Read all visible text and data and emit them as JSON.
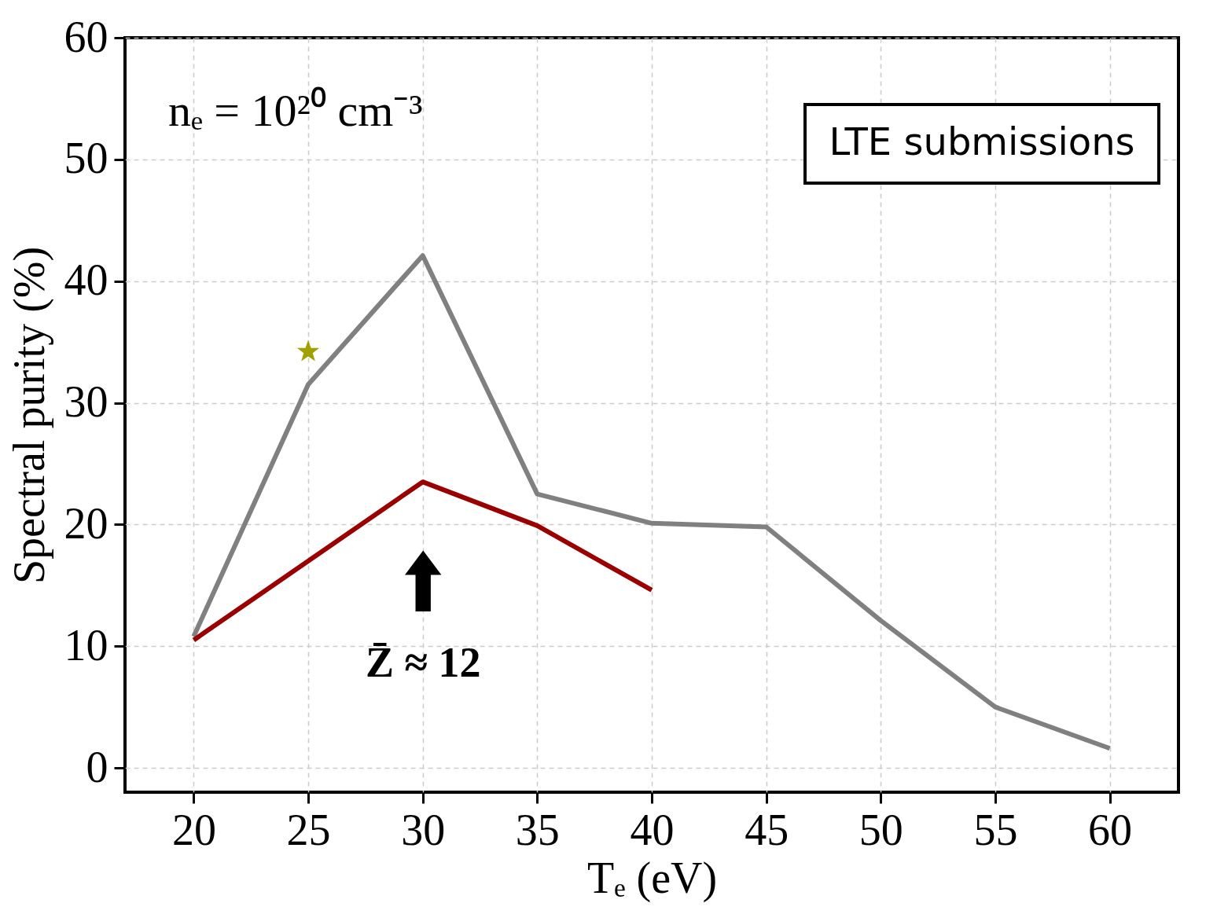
{
  "chart_data": {
    "type": "line",
    "xlabel": "Tₑ (eV)",
    "ylabel": "Spectral purity (%)",
    "xlim": [
      17,
      63
    ],
    "xticks": [
      20,
      25,
      30,
      35,
      40,
      45,
      50,
      55,
      60
    ],
    "ylim": [
      -2,
      60
    ],
    "yticks": [
      0,
      10,
      20,
      30,
      40,
      50,
      60
    ],
    "grid": true,
    "marker": "none",
    "line_style": "solid",
    "series": [
      {
        "color": "#808080",
        "x": [
          20,
          25,
          30,
          35,
          40,
          45,
          50,
          55,
          60
        ],
        "values": [
          10.8,
          31.5,
          42.1,
          22.5,
          20.1,
          19.8,
          12.1,
          5.0,
          1.6
        ]
      },
      {
        "color": "#9b0000",
        "x": [
          20,
          30,
          35,
          40
        ],
        "values": [
          10.5,
          23.5,
          19.9,
          14.6
        ]
      },
      {
        "type": "scatter",
        "marker": "star",
        "color": "#a0a000",
        "x": [
          25
        ],
        "values": [
          34.2
        ]
      }
    ],
    "annotations": [
      "nₑ = 10²⁰ cm⁻³",
      "LTE submissions",
      "Z̄ ≈ 12"
    ]
  }
}
